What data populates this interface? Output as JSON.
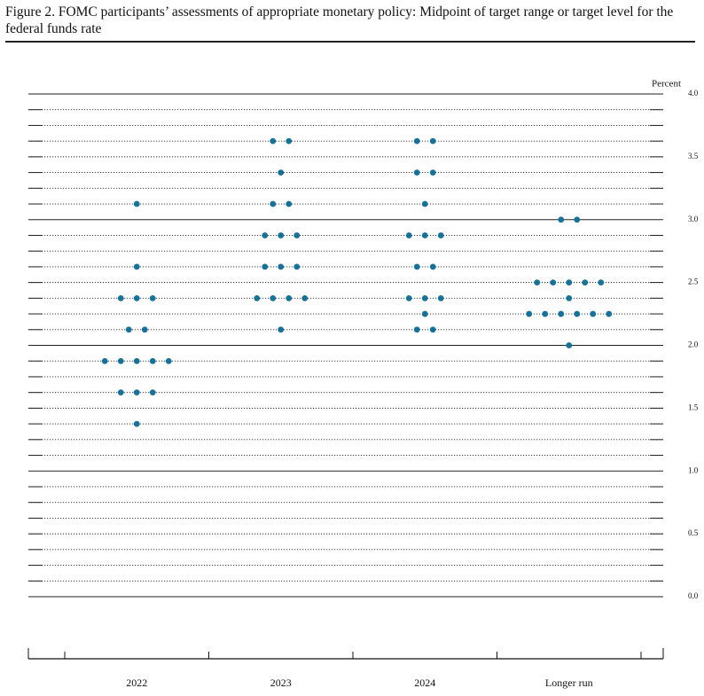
{
  "chart_data": {
    "type": "dot",
    "title": "Figure 2.  FOMC participants’ assessments of appropriate monetary policy: Midpoint of target range or target level for the federal funds rate",
    "ylabel": "Percent",
    "categories": [
      "2022",
      "2023",
      "2024",
      "Longer run"
    ],
    "values": [
      [
        3.125,
        2.625,
        2.375,
        2.375,
        2.375,
        2.125,
        2.125,
        1.875,
        1.875,
        1.875,
        1.875,
        1.875,
        1.625,
        1.625,
        1.625,
        1.375
      ],
      [
        3.625,
        3.625,
        3.375,
        3.125,
        3.125,
        2.875,
        2.875,
        2.875,
        2.625,
        2.625,
        2.625,
        2.375,
        2.375,
        2.375,
        2.375,
        2.125
      ],
      [
        3.625,
        3.625,
        3.375,
        3.375,
        3.125,
        2.875,
        2.875,
        2.875,
        2.625,
        2.625,
        2.375,
        2.375,
        2.375,
        2.25,
        2.125,
        2.125
      ],
      [
        3.0,
        3.0,
        2.5,
        2.5,
        2.5,
        2.5,
        2.5,
        2.375,
        2.25,
        2.25,
        2.25,
        2.25,
        2.25,
        2.25,
        2.0
      ]
    ],
    "color": "#17729a",
    "ylim": [
      0,
      4
    ],
    "yticks": [
      {
        "value": 0,
        "label": "0.0"
      },
      0.5,
      {
        "value": 1,
        "label": "1.0"
      },
      1.5,
      {
        "value": 2,
        "label": "2.0"
      },
      2.5,
      {
        "value": 3,
        "label": "3.0"
      },
      3.5,
      {
        "value": 4,
        "label": "4.0"
      }
    ],
    "grid": true
  }
}
